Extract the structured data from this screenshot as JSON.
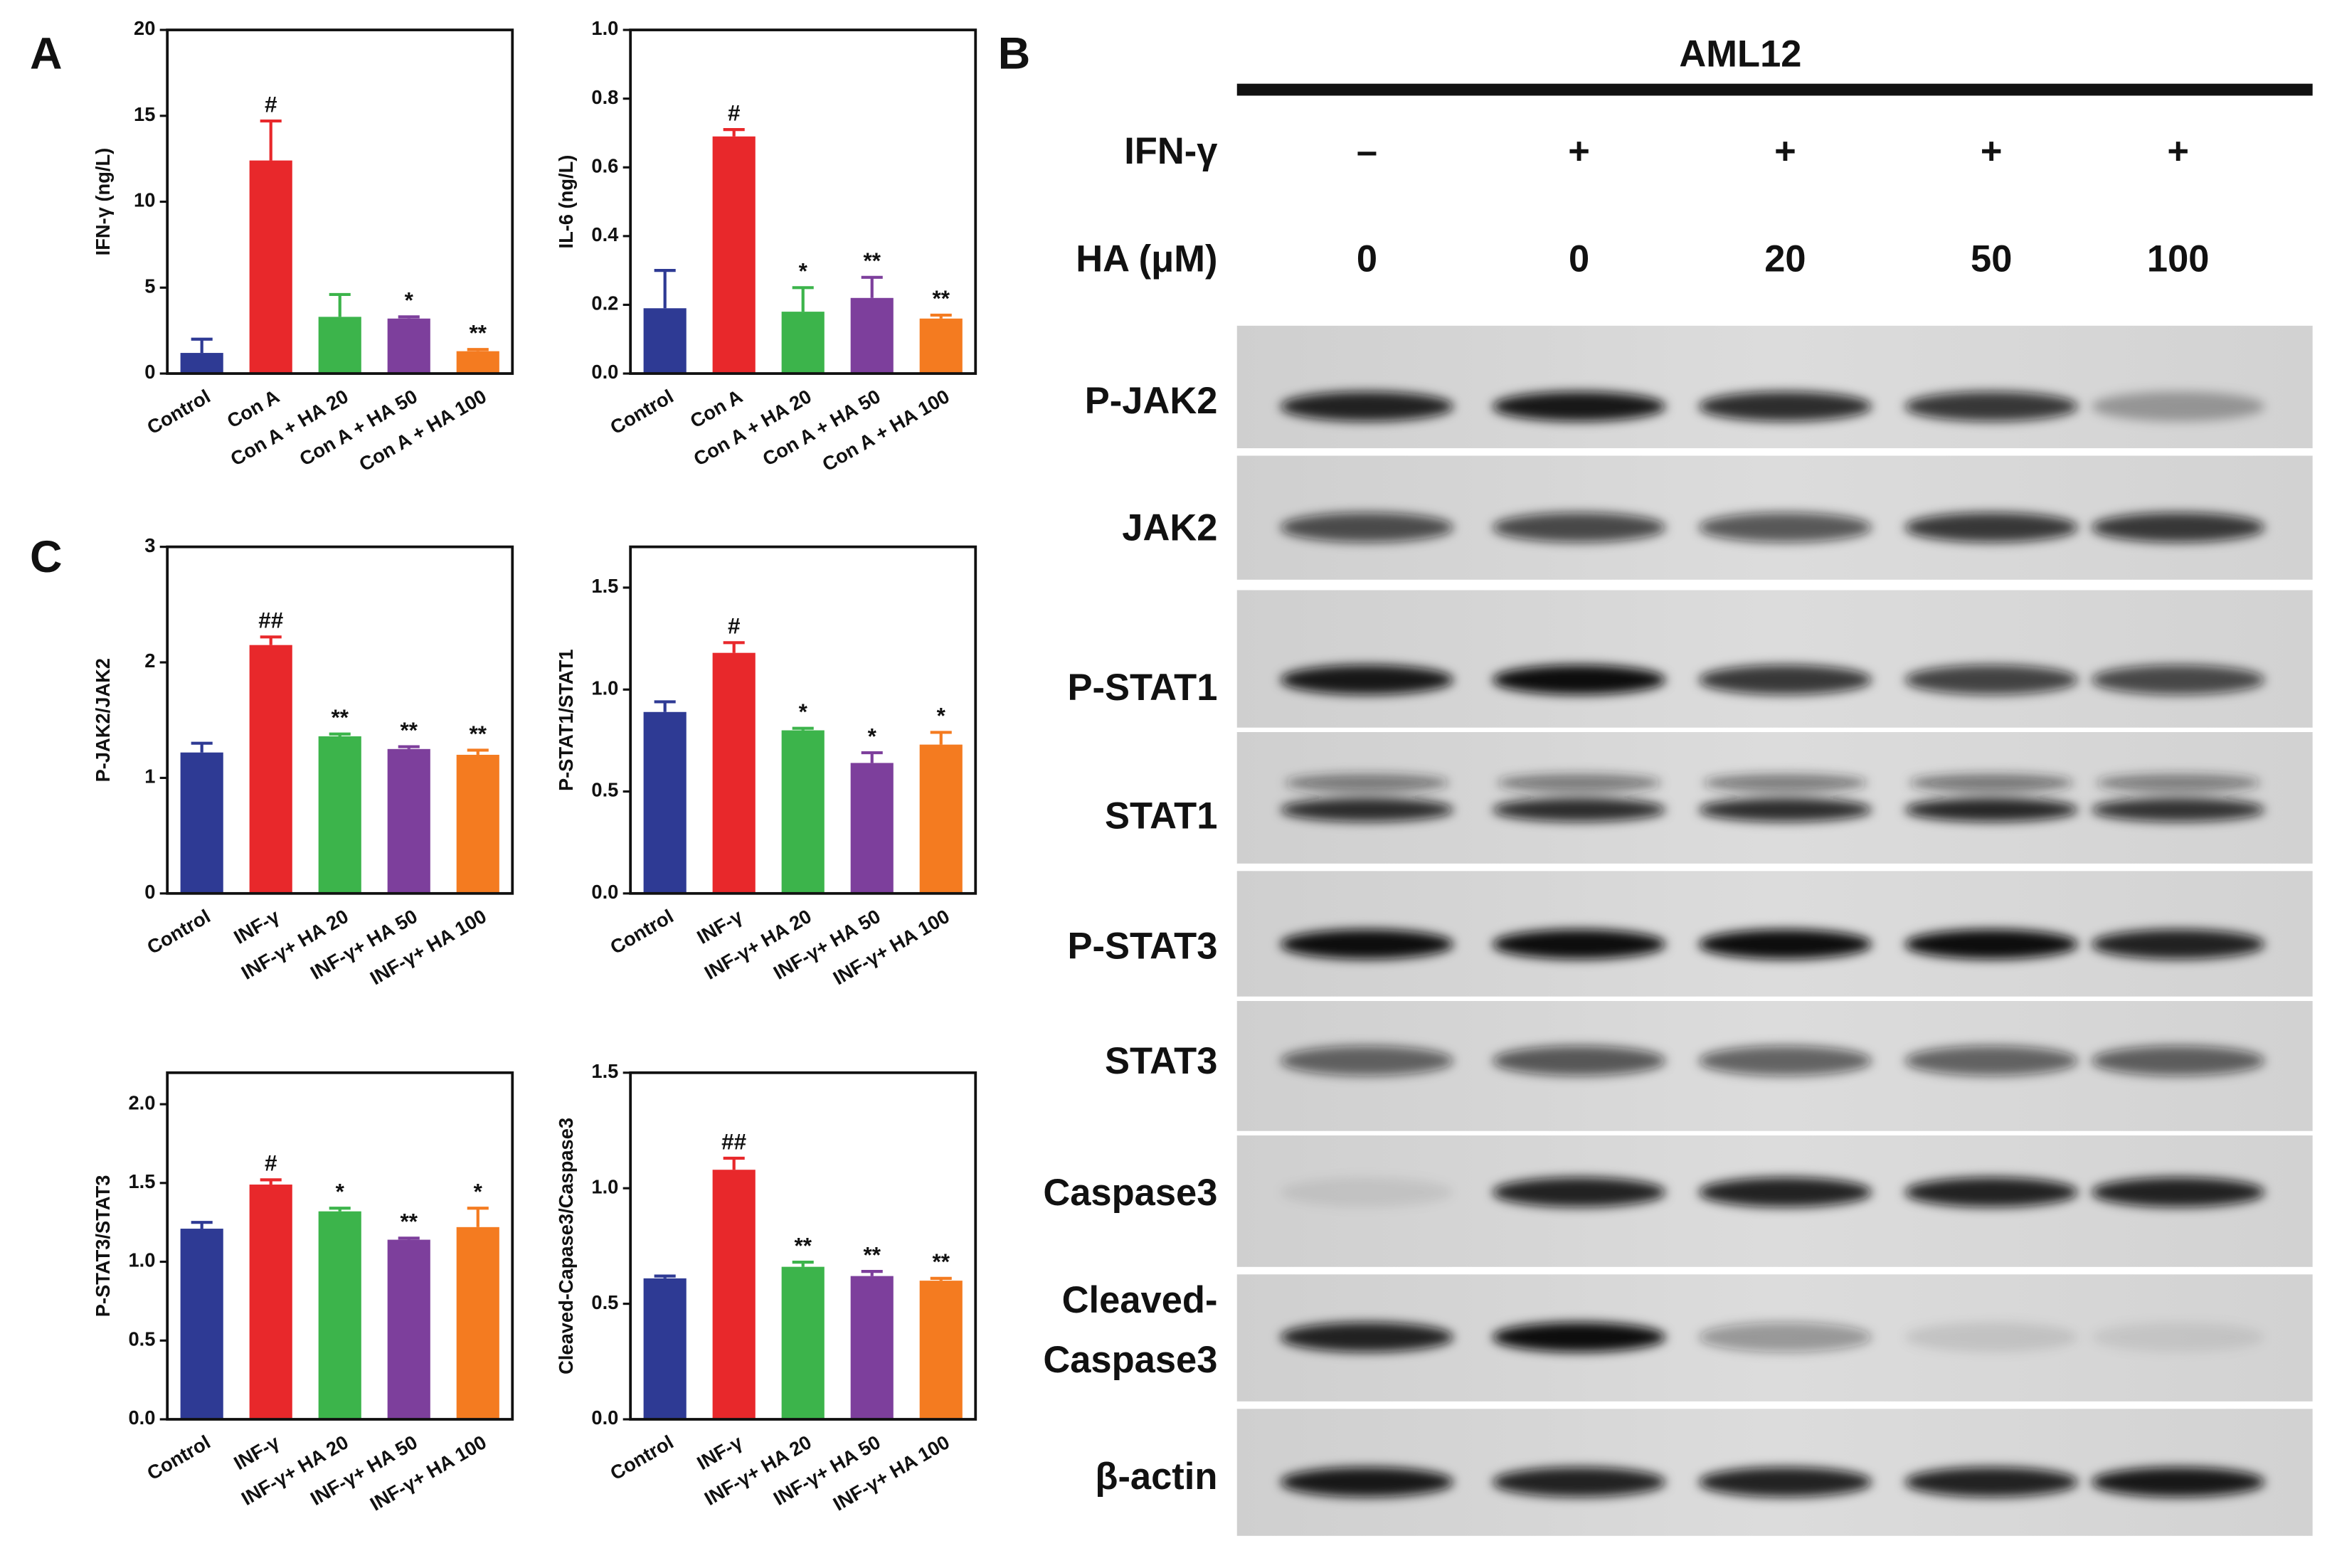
{
  "panel_labels": [
    "A",
    "B",
    "C"
  ],
  "chart_data": [
    {
      "type": "bar",
      "ylabel": "IFN-γ (ng/L)",
      "categories": [
        "Control",
        "Con A",
        "Con A + HA 20",
        "Con A + HA 50",
        "Con A + HA 100"
      ],
      "values": [
        1.2,
        12.4,
        3.3,
        3.2,
        1.3
      ],
      "errors": [
        0.8,
        2.3,
        1.3,
        0.1,
        0.1
      ],
      "annotations": [
        null,
        "#",
        null,
        "*",
        "**"
      ],
      "colors": [
        "#2e3a94",
        "#e8282b",
        "#3cb44b",
        "#7d3f9c",
        "#f47b20"
      ],
      "ylim": [
        0,
        20
      ],
      "yticks": [
        0,
        5,
        10,
        15,
        20
      ]
    },
    {
      "type": "bar",
      "ylabel": "IL-6 (ng/L)",
      "categories": [
        "Control",
        "Con A",
        "Con A + HA 20",
        "Con A + HA 50",
        "Con A + HA 100"
      ],
      "values": [
        0.19,
        0.69,
        0.18,
        0.22,
        0.16
      ],
      "errors": [
        0.11,
        0.02,
        0.07,
        0.06,
        0.01
      ],
      "annotations": [
        null,
        "#",
        "*",
        "**",
        "**"
      ],
      "colors": [
        "#2e3a94",
        "#e8282b",
        "#3cb44b",
        "#7d3f9c",
        "#f47b20"
      ],
      "ylim": [
        0,
        1
      ],
      "yticks": [
        {
          "value": 0,
          "label": "0.0"
        },
        0.2,
        0.4,
        0.6,
        0.8,
        {
          "value": 1,
          "label": "1.0"
        }
      ]
    },
    {
      "type": "bar",
      "ylabel": "P-JAK2/JAK2",
      "categories": [
        "Control",
        "INF-γ",
        "INF-γ+ HA 20",
        "INF-γ+ HA 50",
        "INF-γ+ HA 100"
      ],
      "values": [
        1.22,
        2.15,
        1.36,
        1.25,
        1.2
      ],
      "errors": [
        0.08,
        0.07,
        0.02,
        0.02,
        0.04
      ],
      "annotations": [
        null,
        "##",
        "**",
        "**",
        "**"
      ],
      "colors": [
        "#2e3a94",
        "#e8282b",
        "#3cb44b",
        "#7d3f9c",
        "#f47b20"
      ],
      "ylim": [
        0,
        3
      ],
      "yticks": [
        0,
        1,
        2,
        3
      ]
    },
    {
      "type": "bar",
      "ylabel": "P-STAT1/STAT1",
      "categories": [
        "Control",
        "INF-γ",
        "INF-γ+ HA 20",
        "INF-γ+ HA 50",
        "INF-γ+ HA 100"
      ],
      "values": [
        0.89,
        1.18,
        0.8,
        0.64,
        0.73
      ],
      "errors": [
        0.05,
        0.05,
        0.01,
        0.05,
        0.06
      ],
      "annotations": [
        null,
        "#",
        "*",
        "*",
        "*"
      ],
      "colors": [
        "#2e3a94",
        "#e8282b",
        "#3cb44b",
        "#7d3f9c",
        "#f47b20"
      ],
      "ylim": [
        0,
        1.7
      ],
      "yticks": [
        {
          "value": 0,
          "label": "0.0"
        },
        0.5,
        {
          "value": 1,
          "label": "1.0"
        },
        1.5
      ]
    },
    {
      "type": "bar",
      "ylabel": "P-STAT3/STAT3",
      "categories": [
        "Control",
        "INF-γ",
        "INF-γ+ HA 20",
        "INF-γ+ HA 50",
        "INF-γ+ HA 100"
      ],
      "values": [
        1.21,
        1.49,
        1.32,
        1.14,
        1.22
      ],
      "errors": [
        0.04,
        0.03,
        0.02,
        0.01,
        0.12
      ],
      "annotations": [
        null,
        "#",
        "*",
        "**",
        "*"
      ],
      "colors": [
        "#2e3a94",
        "#e8282b",
        "#3cb44b",
        "#7d3f9c",
        "#f47b20"
      ],
      "ylim": [
        0,
        2.2
      ],
      "yticks": [
        {
          "value": 0,
          "label": "0.0"
        },
        0.5,
        {
          "value": 1,
          "label": "1.0"
        },
        1.5,
        {
          "value": 2,
          "label": "2.0"
        }
      ]
    },
    {
      "type": "bar",
      "ylabel": "Cleaved-Capase3/Caspase3",
      "categories": [
        "Control",
        "INF-γ",
        "INF-γ+ HA 20",
        "INF-γ+ HA 50",
        "INF-γ+ HA 100"
      ],
      "values": [
        0.61,
        1.08,
        0.66,
        0.62,
        0.6
      ],
      "errors": [
        0.01,
        0.05,
        0.02,
        0.02,
        0.01
      ],
      "annotations": [
        null,
        "##",
        "**",
        "**",
        "**"
      ],
      "colors": [
        "#2e3a94",
        "#e8282b",
        "#3cb44b",
        "#7d3f9c",
        "#f47b20"
      ],
      "ylim": [
        0,
        1.5
      ],
      "yticks": [
        {
          "value": 0,
          "label": "0.0"
        },
        0.5,
        {
          "value": 1,
          "label": "1.0"
        },
        1.5
      ]
    }
  ],
  "blot": {
    "title": "AML12",
    "treatments": [
      {
        "label": "IFN-γ",
        "values": [
          "–",
          "+",
          "+",
          "+",
          "+"
        ]
      },
      {
        "label": "HA (μM)",
        "values": [
          0,
          0,
          20,
          50,
          100
        ]
      }
    ],
    "bands": [
      {
        "label": [
          "P-JAK2"
        ]
      },
      {
        "label": [
          "JAK2"
        ]
      },
      {
        "label": [
          "P-STAT1"
        ]
      },
      {
        "label": [
          "STAT1"
        ]
      },
      {
        "label": [
          "P-STAT3"
        ]
      },
      {
        "label": [
          "STAT3"
        ]
      },
      {
        "label": [
          "Caspase3"
        ]
      },
      {
        "label": [
          "Cleaved-",
          "Caspase3"
        ]
      },
      {
        "label": [
          "β-actin"
        ]
      }
    ]
  }
}
